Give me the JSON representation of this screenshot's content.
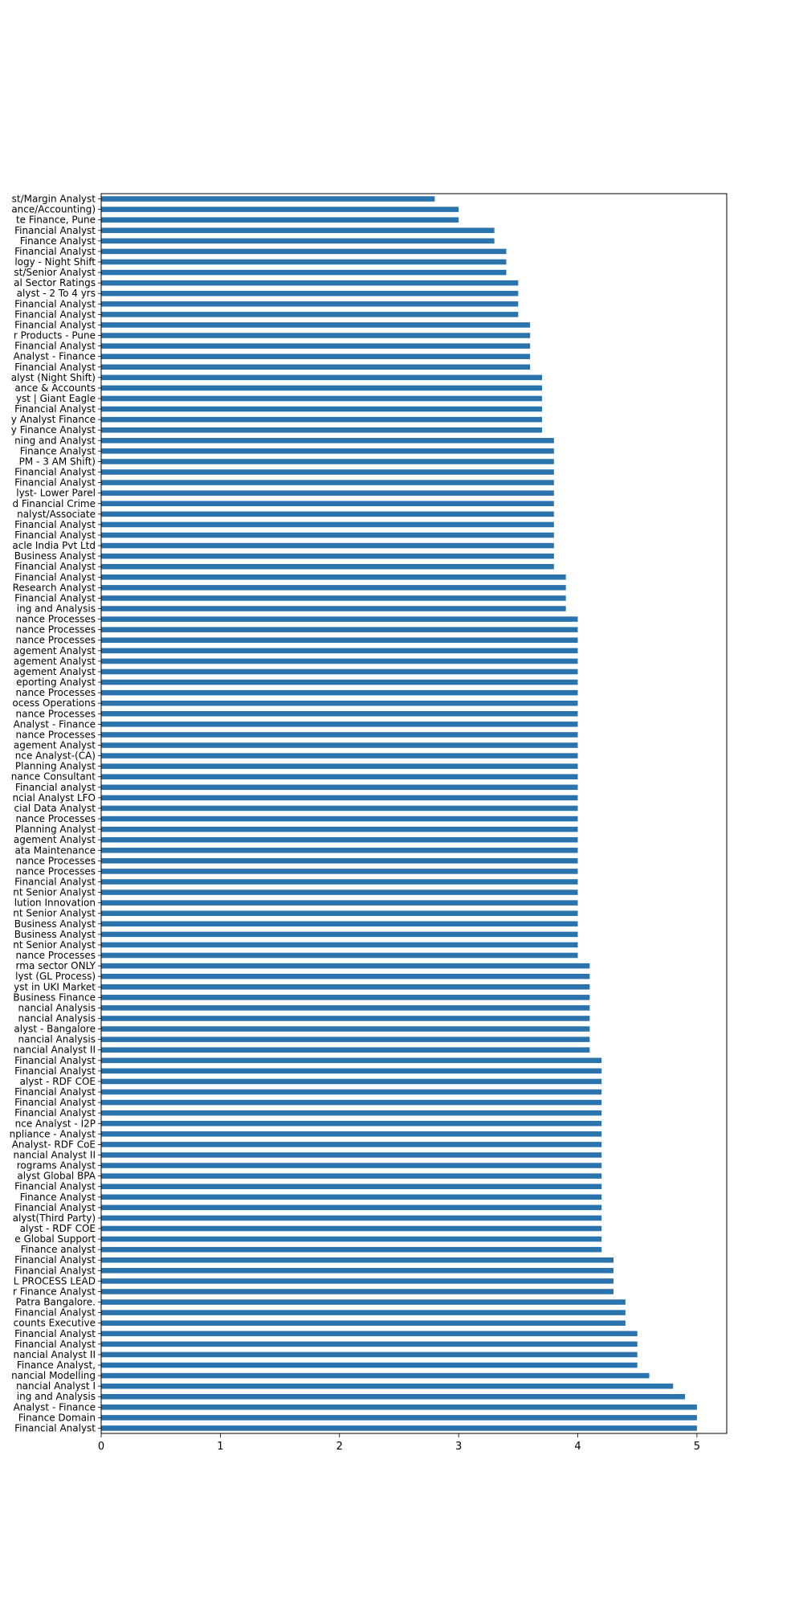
{
  "chart_data": {
    "type": "bar",
    "orientation": "horizontal",
    "title": "",
    "xlabel": "",
    "ylabel": "",
    "xlim": [
      0,
      5.25
    ],
    "xticks": [
      "0",
      "1",
      "2",
      "3",
      "4",
      "5"
    ],
    "grid": false,
    "legend": "none",
    "bar_color": "#2b73ac",
    "categories": [
      "st/Margin Analyst",
      "ance/Accounting)",
      "te Finance, Pune",
      "Financial Analyst",
      "Finance Analyst",
      "Financial Analyst",
      "logy - Night Shift",
      "st/Senior Analyst",
      "al Sector Ratings",
      "alyst - 2 To 4 yrs",
      "Financial Analyst",
      "Financial Analyst",
      "Financial Analyst",
      "r Products - Pune",
      "Financial Analyst",
      "Analyst - Finance",
      "Financial Analyst",
      "alyst (Night Shift)",
      "ance & Accounts",
      "yst | Giant Eagle",
      "Financial Analyst",
      "y Analyst Finance",
      "y Finance Analyst",
      "ning and Analyst",
      "Finance Analyst",
      "PM - 3 AM Shift)",
      "Financial Analyst",
      "Financial Analyst",
      "lyst- Lower Parel",
      "d Financial Crime",
      "nalyst/Associate",
      "Financial Analyst",
      "Financial Analyst",
      "acle India Pvt Ltd",
      "Business Analyst",
      "Financial Analyst",
      "Financial Analyst",
      "Research Analyst",
      "Financial Analyst",
      "ing and Analysis",
      "nance Processes",
      "nance Processes",
      "nance Processes",
      "agement Analyst",
      "agement Analyst",
      "agement Analyst",
      "eporting Analyst",
      "nance Processes",
      "ocess Operations",
      "nance Processes",
      "Analyst - Finance",
      "nance Processes",
      "agement Analyst",
      "nce Analyst-(CA)",
      "Planning Analyst",
      "nance Consultant",
      "Financial analyst",
      "ncial Analyst LFO",
      "cial Data Analyst",
      "nance Processes",
      "Planning Analyst",
      "agement Analyst",
      "ata Maintenance",
      "nance Processes",
      "nance Processes",
      "Financial Analyst",
      "nt Senior Analyst",
      "lution Innovation",
      "nt Senior Analyst",
      "Business Analyst",
      "Business Analyst",
      "nt Senior Analyst",
      "nance Processes",
      "rma sector ONLY",
      "lyst (GL Process)",
      "yst in UKI Market",
      "Business Finance",
      "nancial Analysis",
      "nancial Analysis",
      "alyst - Bangalore",
      "nancial Analysis",
      "nancial Analyst II",
      "Financial Analyst",
      "Financial Analyst",
      "alyst - RDF COE",
      "Financial Analyst",
      "Financial Analyst",
      "Financial Analyst",
      "nce Analyst - I2P",
      "npliance - Analyst",
      "Analyst- RDF CoE",
      "nancial Analyst II",
      "rograms Analyst",
      "alyst Global BPA",
      "Financial Analyst",
      "Finance Analyst",
      "Financial Analyst",
      "alyst(Third Party)",
      "alyst - RDF COE",
      "e Global Support",
      "Finance analyst",
      "Financial Analyst",
      "Financial Analyst",
      "L PROCESS LEAD",
      "r Finance Analyst",
      "Patra Bangalore.",
      "Financial Analyst",
      "counts Executive",
      "Financial Analyst",
      "Financial Analyst",
      "nancial Analyst II",
      "Finance Analyst,",
      "nancial Modelling",
      "nancial Analyst I",
      "ing and Analysis",
      "Analyst - Finance",
      "Finance Domain",
      "Financial Analyst"
    ],
    "values": [
      2.8,
      3.0,
      3.0,
      3.3,
      3.3,
      3.4,
      3.4,
      3.4,
      3.5,
      3.5,
      3.5,
      3.5,
      3.6,
      3.6,
      3.6,
      3.6,
      3.6,
      3.7,
      3.7,
      3.7,
      3.7,
      3.7,
      3.7,
      3.8,
      3.8,
      3.8,
      3.8,
      3.8,
      3.8,
      3.8,
      3.8,
      3.8,
      3.8,
      3.8,
      3.8,
      3.8,
      3.9,
      3.9,
      3.9,
      3.9,
      4.0,
      4.0,
      4.0,
      4.0,
      4.0,
      4.0,
      4.0,
      4.0,
      4.0,
      4.0,
      4.0,
      4.0,
      4.0,
      4.0,
      4.0,
      4.0,
      4.0,
      4.0,
      4.0,
      4.0,
      4.0,
      4.0,
      4.0,
      4.0,
      4.0,
      4.0,
      4.0,
      4.0,
      4.0,
      4.0,
      4.0,
      4.0,
      4.0,
      4.1,
      4.1,
      4.1,
      4.1,
      4.1,
      4.1,
      4.1,
      4.1,
      4.1,
      4.2,
      4.2,
      4.2,
      4.2,
      4.2,
      4.2,
      4.2,
      4.2,
      4.2,
      4.2,
      4.2,
      4.2,
      4.2,
      4.2,
      4.2,
      4.2,
      4.2,
      4.2,
      4.2,
      4.3,
      4.3,
      4.3,
      4.3,
      4.4,
      4.4,
      4.4,
      4.5,
      4.5,
      4.5,
      4.5,
      4.6,
      4.8,
      4.9,
      5.0,
      5.0,
      5.0
    ]
  }
}
